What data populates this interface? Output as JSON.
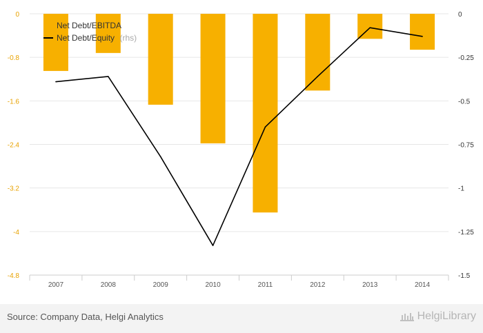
{
  "chart_data": {
    "type": "bar+line",
    "categories": [
      "2007",
      "2008",
      "2009",
      "2010",
      "2011",
      "2012",
      "2013",
      "2014"
    ],
    "series": [
      {
        "name": "Net Debt/EBITDA",
        "kind": "bar",
        "axis": "left",
        "color": "#f7b000",
        "values": [
          -1.05,
          -0.72,
          -1.67,
          -2.38,
          -3.65,
          -1.41,
          -0.46,
          -0.66
        ]
      },
      {
        "name": "Net Debt/Equity",
        "axis_note": "(rhs)",
        "kind": "line",
        "axis": "right",
        "color": "#000000",
        "values": [
          -0.39,
          -0.36,
          -0.82,
          -1.33,
          -0.65,
          -0.36,
          -0.08,
          -0.13
        ]
      }
    ],
    "left_axis": {
      "ylim": [
        -4.8,
        0
      ],
      "ticks": [
        0,
        -0.8,
        -1.6,
        -2.4,
        -3.2,
        -4,
        -4.8
      ],
      "tick_labels": [
        "0",
        "-0.8",
        "-1.6",
        "-2.4",
        "-3.2",
        "-4",
        "-4.8"
      ]
    },
    "right_axis": {
      "ylim": [
        -1.5,
        0
      ],
      "ticks": [
        0,
        -0.25,
        -0.5,
        -0.75,
        -1,
        -1.25,
        -1.5
      ],
      "tick_labels": [
        "0",
        "-0.25",
        "-0.5",
        "-0.75",
        "-1",
        "-1.25",
        "-1.5"
      ]
    },
    "grid": true,
    "legend_position": "top-left"
  },
  "footer": {
    "source": "Source: Company Data, Helgi Analytics",
    "brand": "HelgiLibrary"
  },
  "colors": {
    "bar": "#f7b000",
    "line": "#000000",
    "grid": "#e6e6e6"
  }
}
